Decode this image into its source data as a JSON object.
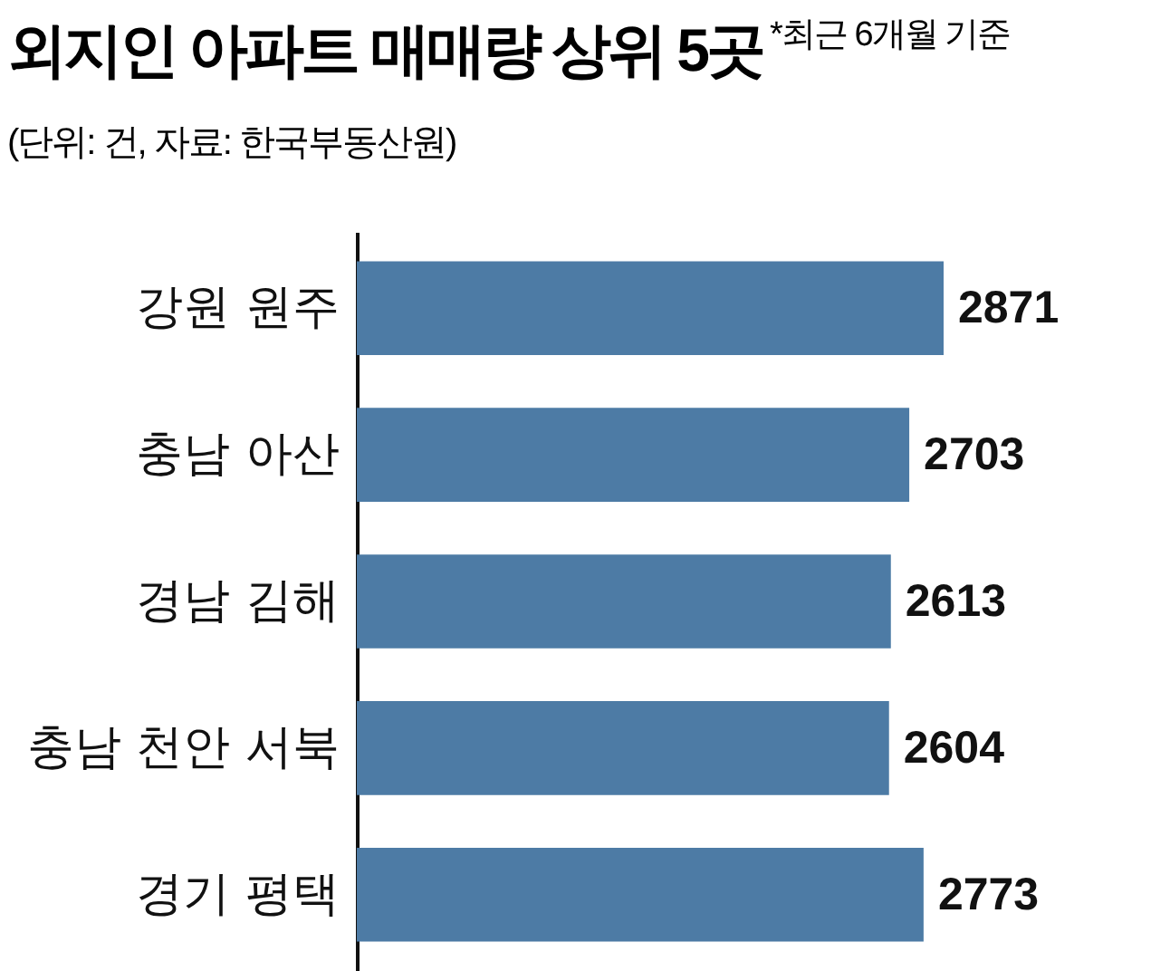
{
  "chart_data": {
    "type": "bar",
    "orientation": "horizontal",
    "title": "외지인 아파트 매매량 상위 5곳",
    "subtitle": "(단위: 건, 자료: 한국부동산원)",
    "annotations": [
      "*최근 6개월 기준"
    ],
    "categories": [
      "강원 원주",
      "충남 아산",
      "경남 김해",
      "충남 천안 서북",
      "경기 평택"
    ],
    "values": [
      2871,
      2703,
      2613,
      2604,
      2773
    ],
    "color": "#4d7ba5",
    "data_labels": true
  }
}
